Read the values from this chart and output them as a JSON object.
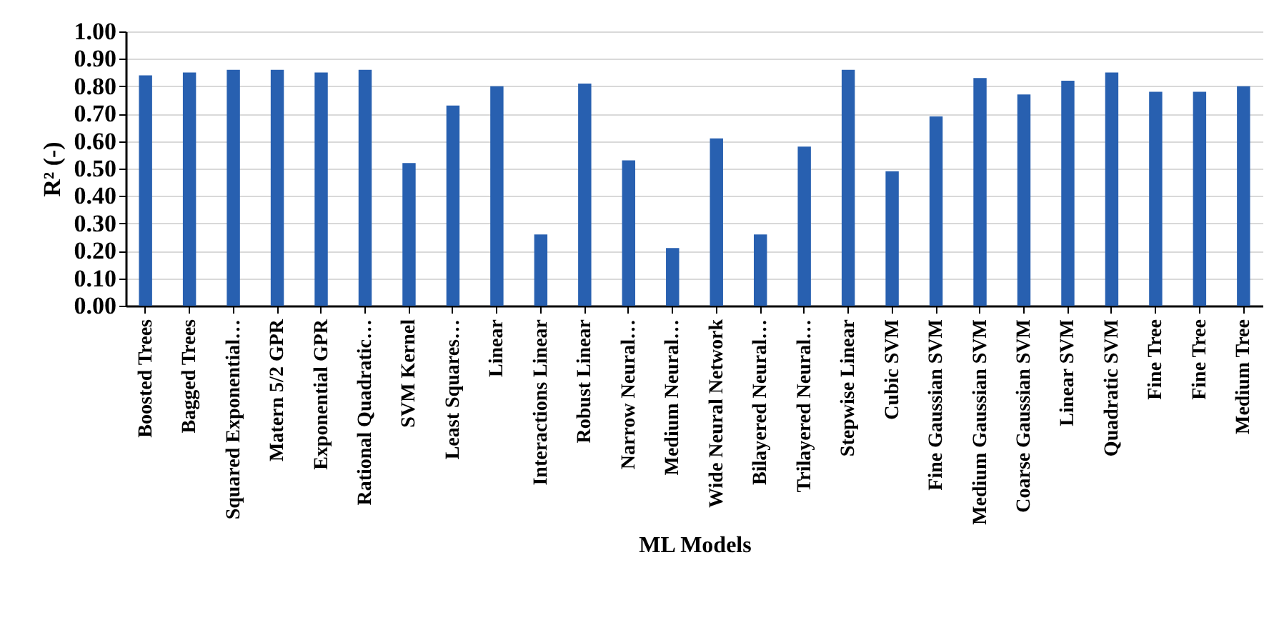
{
  "chart_data": {
    "type": "bar",
    "xlabel": "ML Models",
    "ylabel": "R² (-)",
    "categories": [
      "Boosted Trees",
      "Bagged Trees",
      "Squared Exponential…",
      "Matern 5/2 GPR",
      "Exponential GPR",
      "Rational Quadratic…",
      "SVM Kernel",
      "Least Squares…",
      "Linear",
      "Interactions Linear",
      "Robust Linear",
      "Narrow Neural…",
      "Medium Neural…",
      "Wide Neural Network",
      "Bilayered Neural…",
      "Trilayered Neural…",
      "Stepwise Linear",
      "Cubic SVM",
      "Fine Gaussian SVM",
      "Medium Gaussian SVM",
      "Coarse Gaussian SVM",
      "Linear SVM",
      "Quadratic SVM",
      "Fine Tree",
      "Fine Tree",
      "Medium Tree"
    ],
    "values": [
      0.84,
      0.85,
      0.86,
      0.86,
      0.85,
      0.86,
      0.52,
      0.73,
      0.8,
      0.26,
      0.81,
      0.53,
      0.21,
      0.61,
      0.26,
      0.58,
      0.86,
      0.49,
      0.69,
      0.83,
      0.77,
      0.82,
      0.85,
      0.78,
      0.78,
      0.8
    ],
    "color": "#2860b0",
    "ylim": [
      0,
      1
    ],
    "yticks": [
      {
        "value": 0,
        "label": "0.00"
      },
      {
        "value": 0.1,
        "label": "0.10"
      },
      {
        "value": 0.2,
        "label": "0.20"
      },
      {
        "value": 0.3,
        "label": "0.30"
      },
      {
        "value": 0.4,
        "label": "0.40"
      },
      {
        "value": 0.5,
        "label": "0.50"
      },
      {
        "value": 0.6,
        "label": "0.60"
      },
      {
        "value": 0.7,
        "label": "0.70"
      },
      {
        "value": 0.8,
        "label": "0.80"
      },
      {
        "value": 0.9,
        "label": "0.90"
      },
      {
        "value": 1,
        "label": "1.00"
      }
    ],
    "grid": "y"
  }
}
